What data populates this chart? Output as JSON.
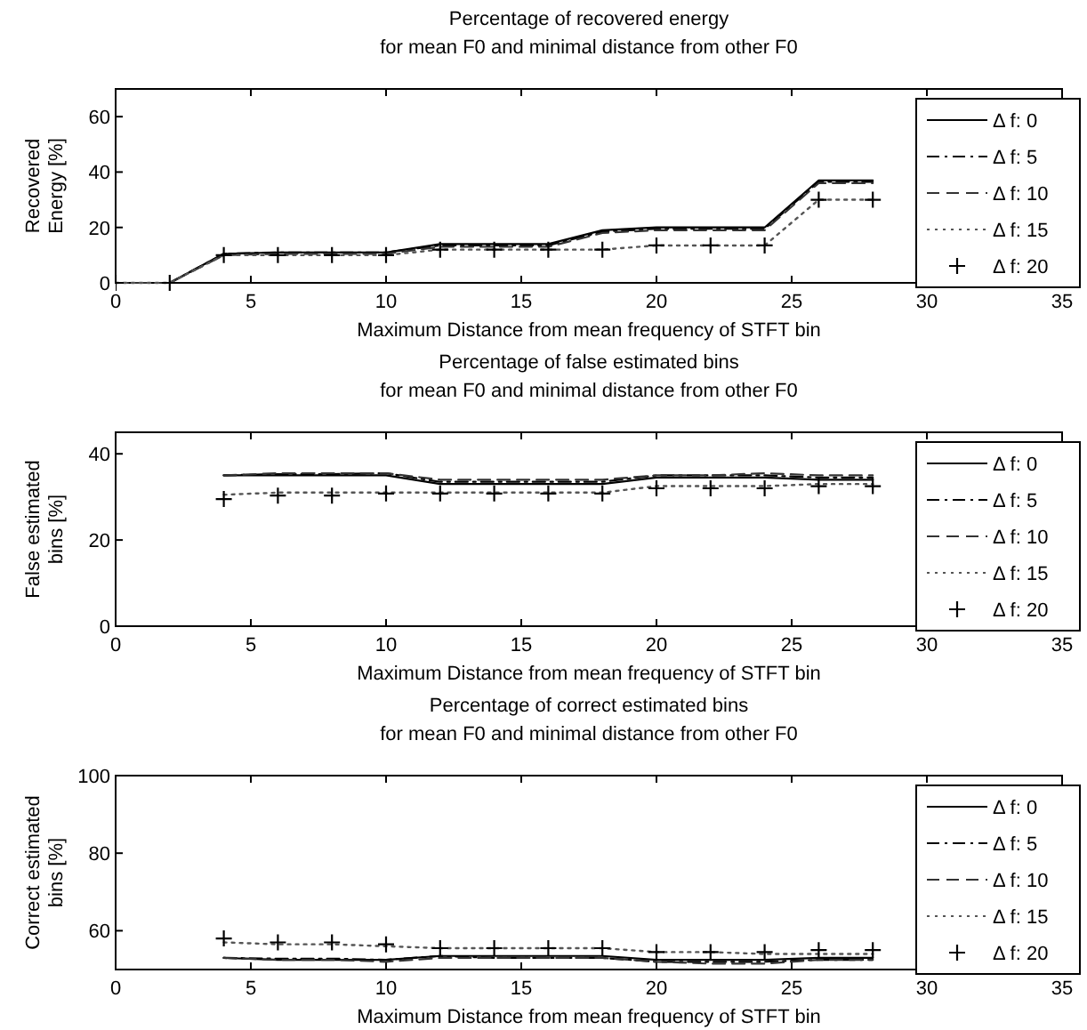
{
  "chart_data": [
    {
      "type": "line",
      "title": "Percentage of recovered energy",
      "subtitle": "for mean F0 and minimal distance from other F0",
      "xlabel": "Maximum Distance from mean frequency of STFT bin",
      "ylabel": "Recovered Energy [%]",
      "xlim": [
        0,
        35
      ],
      "xticks": [
        0,
        5,
        10,
        15,
        20,
        25,
        30,
        35
      ],
      "ylim": [
        0,
        70
      ],
      "yticks": [
        0,
        20,
        40,
        60
      ],
      "legend": "right",
      "grid": false,
      "x": [
        0,
        2,
        4,
        6,
        8,
        10,
        12,
        14,
        16,
        18,
        20,
        22,
        24,
        26,
        28
      ],
      "series": [
        {
          "name": "Δ f: 0",
          "color": "#000000",
          "line_style": "solid",
          "values": [
            0,
            0,
            10.5,
            11,
            11,
            11,
            14,
            14,
            14,
            19,
            20,
            20,
            20,
            37,
            37
          ]
        },
        {
          "name": "Δ f: 5",
          "color": "#000000",
          "line_style": "dashdot",
          "values": [
            0,
            0,
            10.5,
            11,
            11,
            11,
            13.5,
            13.5,
            13.5,
            18.5,
            19.5,
            19.5,
            19.5,
            36.5,
            36.5
          ]
        },
        {
          "name": "Δ f: 10",
          "color": "#333333",
          "line_style": "dashed",
          "values": [
            0,
            0,
            10,
            10.5,
            10.5,
            10.5,
            13,
            13,
            13,
            18,
            19,
            19,
            19,
            36,
            36
          ]
        },
        {
          "name": "Δ f: 15",
          "color": "#555555",
          "line_style": "dotted",
          "values": [
            0,
            0,
            10,
            10,
            10,
            10,
            12,
            12,
            12,
            12,
            13.5,
            13.5,
            13.5,
            30,
            30
          ]
        },
        {
          "name": "Δ f: 20",
          "color": "#000000",
          "type": "scatter",
          "marker": "cross",
          "values": [
            0,
            0,
            10,
            10,
            10,
            10,
            12,
            12,
            12,
            12,
            13.5,
            13.5,
            13.5,
            30,
            30
          ]
        }
      ]
    },
    {
      "type": "line",
      "title": "Percentage of false estimated bins",
      "subtitle": "for mean F0 and minimal distance from other F0",
      "xlabel": "Maximum Distance from mean frequency of STFT bin",
      "ylabel": "False estimated bins [%]",
      "xlim": [
        0,
        35
      ],
      "xticks": [
        0,
        5,
        10,
        15,
        20,
        25,
        30,
        35
      ],
      "ylim": [
        0,
        45
      ],
      "yticks": [
        0,
        20,
        40
      ],
      "legend": "right",
      "grid": false,
      "x": [
        4,
        6,
        8,
        10,
        12,
        14,
        16,
        18,
        20,
        22,
        24,
        26,
        28
      ],
      "series": [
        {
          "name": "Δ f: 0",
          "color": "#000000",
          "line_style": "solid",
          "values": [
            35,
            35,
            35,
            35,
            33,
            33,
            33,
            33,
            34.5,
            34.5,
            34.5,
            34,
            34
          ]
        },
        {
          "name": "Δ f: 5",
          "color": "#000000",
          "line_style": "dashdot",
          "values": [
            35,
            35.3,
            35.3,
            35.5,
            33.5,
            33.5,
            33.5,
            33.5,
            35,
            35,
            35,
            34.5,
            34.5
          ]
        },
        {
          "name": "Δ f: 10",
          "color": "#333333",
          "line_style": "dashed",
          "values": [
            35,
            35.5,
            35.5,
            35.5,
            34,
            34,
            34,
            34,
            35,
            35,
            35.5,
            35,
            35
          ]
        },
        {
          "name": "Δ f: 15",
          "color": "#555555",
          "line_style": "dotted",
          "values": [
            30.5,
            31,
            31,
            31,
            31,
            31,
            31,
            31,
            32.5,
            32.5,
            32.5,
            33,
            33
          ]
        },
        {
          "name": "Δ f: 20",
          "color": "#000000",
          "type": "scatter",
          "marker": "cross",
          "values": [
            29.5,
            30.3,
            30.3,
            30.8,
            30.8,
            30.8,
            30.8,
            30.8,
            32,
            32,
            32,
            32.5,
            32.5
          ]
        }
      ]
    },
    {
      "type": "line",
      "title": "Percentage of correct estimated bins",
      "subtitle": "for mean F0 and minimal distance from other F0",
      "xlabel": "Maximum Distance from mean frequency of STFT bin",
      "ylabel": "Correct estimated bins [%]",
      "xlim": [
        0,
        35
      ],
      "xticks": [
        0,
        5,
        10,
        15,
        20,
        25,
        30,
        35
      ],
      "ylim": [
        50,
        100
      ],
      "yticks": [
        60,
        80,
        100
      ],
      "legend": "right",
      "grid": false,
      "x": [
        4,
        6,
        8,
        10,
        12,
        14,
        16,
        18,
        20,
        22,
        24,
        26,
        28
      ],
      "series": [
        {
          "name": "Δ f: 0",
          "color": "#000000",
          "line_style": "solid",
          "values": [
            53,
            52.5,
            52.5,
            52.5,
            53.5,
            53.5,
            53.5,
            53.5,
            52.5,
            52.5,
            52.5,
            53,
            53
          ]
        },
        {
          "name": "Δ f: 5",
          "color": "#000000",
          "line_style": "dashdot",
          "values": [
            53,
            52.8,
            52.8,
            52.5,
            53.5,
            53,
            53,
            53,
            52,
            52,
            52,
            52.5,
            52.5
          ]
        },
        {
          "name": "Δ f: 10",
          "color": "#333333",
          "line_style": "dashed",
          "values": [
            53,
            52.5,
            52.5,
            52,
            53,
            53,
            53,
            53,
            52,
            51.5,
            51.5,
            52.5,
            52.5
          ]
        },
        {
          "name": "Δ f: 15",
          "color": "#555555",
          "line_style": "dotted",
          "values": [
            57,
            56.5,
            56.5,
            56,
            55.5,
            55.5,
            55.5,
            55.5,
            54.5,
            54.5,
            54,
            54,
            54
          ]
        },
        {
          "name": "Δ f: 20",
          "color": "#000000",
          "type": "scatter",
          "marker": "cross",
          "values": [
            58,
            57,
            57,
            56.5,
            55.5,
            55.5,
            55.5,
            55.5,
            54.5,
            54.5,
            54.5,
            55,
            55
          ]
        }
      ]
    }
  ]
}
